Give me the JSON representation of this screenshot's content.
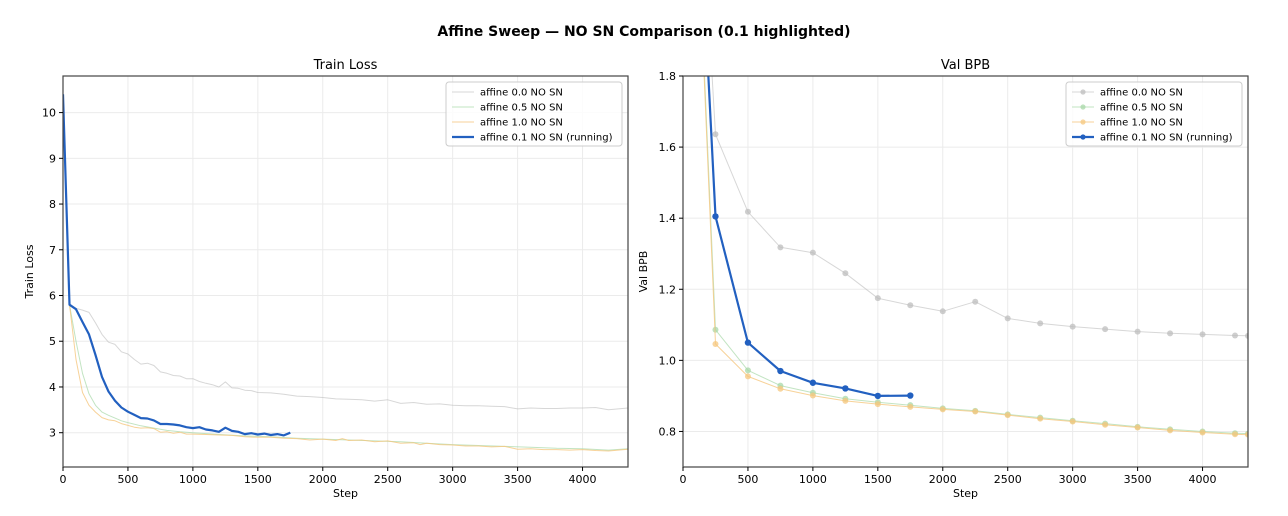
{
  "figure": {
    "title": "Affine Sweep — NO SN Comparison (0.1 highlighted)"
  },
  "colors": {
    "affine_0_0": "#bdbdbd",
    "affine_0_5": "#a8d8a8",
    "affine_1_0": "#f5c77e",
    "affine_0_1": "#2260c0",
    "grid": "#ebebeb",
    "axis": "#444444"
  },
  "chart_data": [
    {
      "type": "line",
      "title": "Train Loss",
      "xlabel": "Step",
      "ylabel": "Train Loss",
      "xlim": [
        0,
        4350
      ],
      "ylim": [
        2.25,
        10.8
      ],
      "xticks": [
        0,
        500,
        1000,
        1500,
        2000,
        2500,
        3000,
        3500,
        4000
      ],
      "yticks": [
        3,
        4,
        5,
        6,
        7,
        8,
        9,
        10
      ],
      "grid": true,
      "legend_position": "upper right",
      "legend": [
        "affine 0.0 NO SN",
        "affine 0.5 NO SN",
        "affine 1.0 NO SN",
        "affine 0.1 NO SN (running)"
      ],
      "series": [
        {
          "name": "affine 0.0 NO SN",
          "color": "#bdbdbd",
          "width": 1,
          "opacity": 0.6,
          "x": [
            0,
            50,
            100,
            150,
            200,
            250,
            300,
            350,
            400,
            450,
            500,
            550,
            600,
            650,
            700,
            750,
            800,
            850,
            900,
            950,
            1000,
            1050,
            1100,
            1150,
            1200,
            1250,
            1300,
            1350,
            1400,
            1450,
            1500,
            1600,
            1700,
            1800,
            1900,
            2000,
            2100,
            2200,
            2300,
            2400,
            2500,
            2600,
            2700,
            2800,
            2900,
            3000,
            3100,
            3200,
            3300,
            3400,
            3500,
            3600,
            3700,
            3800,
            3900,
            4000,
            4100,
            4200,
            4350
          ],
          "y": [
            10.4,
            5.8,
            5.72,
            5.68,
            5.63,
            5.4,
            5.15,
            4.98,
            4.93,
            4.77,
            4.72,
            4.6,
            4.5,
            4.52,
            4.47,
            4.33,
            4.3,
            4.25,
            4.24,
            4.18,
            4.18,
            4.12,
            4.08,
            4.05,
            4.0,
            4.11,
            3.98,
            3.97,
            3.93,
            3.92,
            3.88,
            3.87,
            3.84,
            3.8,
            3.79,
            3.77,
            3.74,
            3.73,
            3.72,
            3.69,
            3.72,
            3.64,
            3.66,
            3.62,
            3.63,
            3.6,
            3.59,
            3.59,
            3.58,
            3.57,
            3.52,
            3.54,
            3.53,
            3.53,
            3.54,
            3.54,
            3.55,
            3.5,
            3.54
          ]
        },
        {
          "name": "affine 0.5 NO SN",
          "color": "#a8d8a8",
          "width": 1,
          "opacity": 0.7,
          "x": [
            0,
            50,
            100,
            150,
            200,
            250,
            300,
            350,
            400,
            450,
            500,
            600,
            700,
            800,
            900,
            1000,
            1200,
            1400,
            1600,
            1800,
            2000,
            2200,
            2400,
            2600,
            2800,
            3000,
            3200,
            3400,
            3600,
            3800,
            4000,
            4200,
            4350
          ],
          "y": [
            10.4,
            5.8,
            5.0,
            4.3,
            3.85,
            3.6,
            3.45,
            3.38,
            3.32,
            3.26,
            3.22,
            3.15,
            3.1,
            3.05,
            3.02,
            3.0,
            2.96,
            2.93,
            2.91,
            2.88,
            2.86,
            2.84,
            2.82,
            2.8,
            2.77,
            2.74,
            2.72,
            2.7,
            2.68,
            2.66,
            2.65,
            2.62,
            2.65
          ]
        },
        {
          "name": "affine 1.0 NO SN",
          "color": "#f5c77e",
          "width": 1,
          "opacity": 0.8,
          "x": [
            0,
            50,
            100,
            150,
            200,
            250,
            300,
            350,
            400,
            450,
            500,
            550,
            600,
            650,
            700,
            750,
            800,
            850,
            900,
            950,
            1000,
            1100,
            1200,
            1300,
            1400,
            1500,
            1600,
            1700,
            1800,
            1900,
            2000,
            2100,
            2150,
            2200,
            2300,
            2400,
            2500,
            2600,
            2700,
            2750,
            2800,
            2900,
            3000,
            3100,
            3200,
            3300,
            3400,
            3500,
            3600,
            3700,
            3800,
            3900,
            4000,
            4100,
            4200,
            4350
          ],
          "y": [
            10.4,
            5.8,
            4.6,
            3.88,
            3.6,
            3.45,
            3.33,
            3.28,
            3.26,
            3.2,
            3.16,
            3.12,
            3.1,
            3.11,
            3.09,
            3.01,
            3.02,
            2.99,
            3.01,
            2.97,
            2.97,
            2.96,
            2.95,
            2.94,
            2.91,
            2.9,
            2.9,
            2.88,
            2.87,
            2.84,
            2.86,
            2.83,
            2.87,
            2.83,
            2.84,
            2.8,
            2.82,
            2.77,
            2.78,
            2.74,
            2.77,
            2.74,
            2.73,
            2.71,
            2.71,
            2.69,
            2.7,
            2.64,
            2.65,
            2.63,
            2.63,
            2.62,
            2.63,
            2.61,
            2.6,
            2.64
          ]
        },
        {
          "name": "affine 0.1 NO SN (running)",
          "color": "#2260c0",
          "width": 2.2,
          "opacity": 1,
          "x": [
            0,
            50,
            100,
            150,
            200,
            250,
            300,
            350,
            400,
            450,
            500,
            550,
            600,
            650,
            700,
            750,
            800,
            850,
            900,
            950,
            1000,
            1050,
            1100,
            1150,
            1200,
            1250,
            1300,
            1350,
            1400,
            1450,
            1500,
            1550,
            1600,
            1650,
            1700,
            1750
          ],
          "y": [
            10.4,
            5.8,
            5.7,
            5.42,
            5.15,
            4.7,
            4.22,
            3.9,
            3.7,
            3.55,
            3.46,
            3.39,
            3.32,
            3.31,
            3.27,
            3.19,
            3.19,
            3.18,
            3.16,
            3.12,
            3.1,
            3.12,
            3.07,
            3.05,
            3.02,
            3.11,
            3.04,
            3.02,
            2.97,
            2.99,
            2.96,
            2.98,
            2.95,
            2.97,
            2.94,
            3.0
          ]
        }
      ]
    },
    {
      "type": "line",
      "title": "Val BPB",
      "xlabel": "Step",
      "ylabel": "Val BPB",
      "xlim": [
        0,
        4350
      ],
      "ylim": [
        0.7,
        1.8
      ],
      "xticks": [
        0,
        500,
        1000,
        1500,
        2000,
        2500,
        3000,
        3500,
        4000
      ],
      "yticks": [
        0.8,
        1.0,
        1.2,
        1.4,
        1.6,
        1.8
      ],
      "grid": true,
      "markers": true,
      "legend_position": "upper right",
      "legend": [
        "affine 0.0 NO SN",
        "affine 0.5 NO SN",
        "affine 1.0 NO SN",
        "affine 0.1 NO SN (running)"
      ],
      "series": [
        {
          "name": "affine 0.0 NO SN",
          "color": "#bdbdbd",
          "width": 1,
          "opacity": 0.6,
          "x": [
            0,
            250,
            500,
            750,
            1000,
            1250,
            1500,
            1750,
            2000,
            2250,
            2500,
            2750,
            3000,
            3250,
            3500,
            3750,
            4000,
            4250,
            4350
          ],
          "y": [
            3.2,
            1.636,
            1.418,
            1.318,
            1.303,
            1.245,
            1.175,
            1.155,
            1.138,
            1.165,
            1.118,
            1.104,
            1.095,
            1.088,
            1.081,
            1.076,
            1.073,
            1.07,
            1.069
          ]
        },
        {
          "name": "affine 0.5 NO SN",
          "color": "#a8d8a8",
          "width": 1,
          "opacity": 0.7,
          "x": [
            0,
            250,
            500,
            750,
            1000,
            1250,
            1500,
            1750,
            2000,
            2250,
            2500,
            2750,
            3000,
            3250,
            3500,
            3750,
            4000,
            4250,
            4350
          ],
          "y": [
            3.2,
            1.086,
            0.972,
            0.929,
            0.909,
            0.892,
            0.882,
            0.874,
            0.865,
            0.858,
            0.848,
            0.839,
            0.83,
            0.822,
            0.813,
            0.806,
            0.8,
            0.795,
            0.794
          ]
        },
        {
          "name": "affine 1.0 NO SN",
          "color": "#f5c77e",
          "width": 1,
          "opacity": 0.8,
          "x": [
            0,
            250,
            500,
            750,
            1000,
            1250,
            1500,
            1750,
            2000,
            2250,
            2500,
            2750,
            3000,
            3250,
            3500,
            3750,
            4000,
            4250,
            4350
          ],
          "y": [
            3.2,
            1.046,
            0.955,
            0.92,
            0.901,
            0.886,
            0.877,
            0.869,
            0.862,
            0.856,
            0.846,
            0.836,
            0.828,
            0.819,
            0.811,
            0.803,
            0.797,
            0.792,
            0.791
          ]
        },
        {
          "name": "affine 0.1 NO SN (running)",
          "color": "#2260c0",
          "width": 2.2,
          "opacity": 1,
          "x": [
            0,
            250,
            500,
            750,
            1000,
            1250,
            1500,
            1750
          ],
          "y": [
            3.2,
            1.405,
            1.05,
            0.97,
            0.937,
            0.921,
            0.9,
            0.901
          ]
        }
      ]
    }
  ]
}
